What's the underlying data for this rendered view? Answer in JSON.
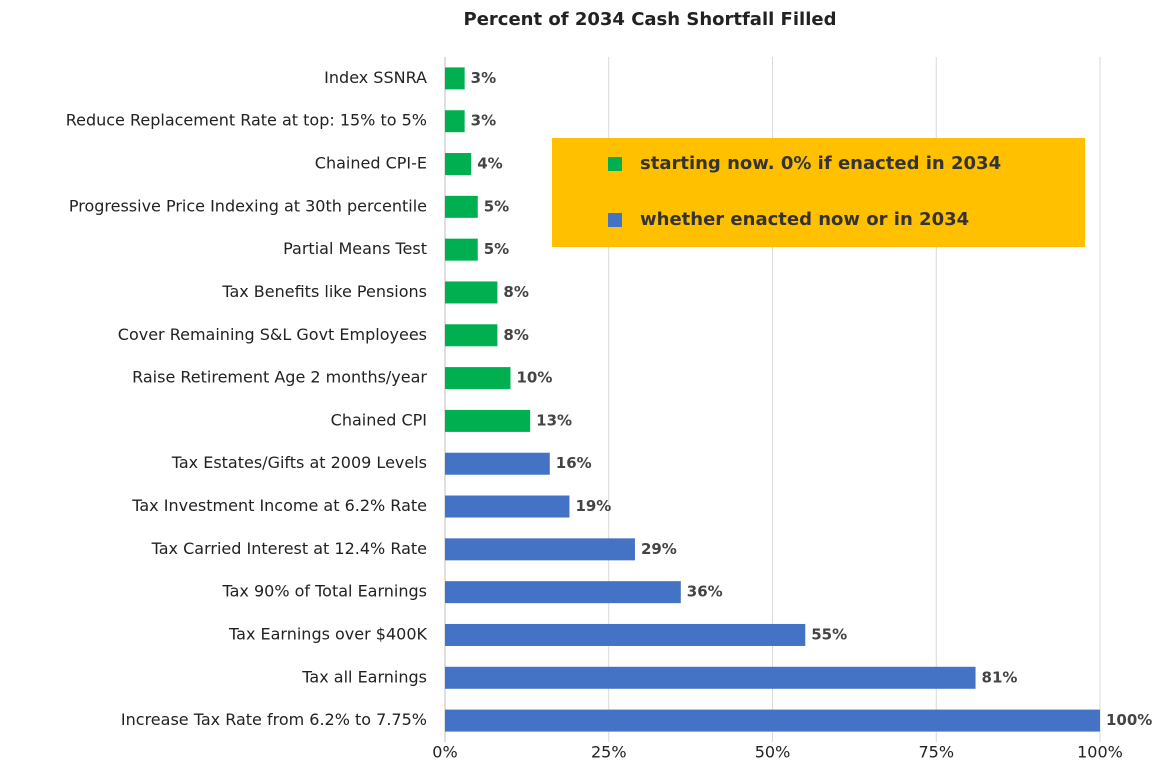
{
  "chart_data": {
    "type": "bar",
    "orientation": "horizontal",
    "title": "Percent of 2034 Cash Shortfall Filled",
    "categories": [
      "Index SSNRA",
      "Reduce Replacement Rate at top: 15% to 5%",
      "Chained CPI-E",
      "Progressive Price Indexing at 30th percentile",
      "Partial Means Test",
      "Tax Benefits like Pensions",
      "Cover Remaining S&L Govt Employees",
      "Raise Retirement Age 2 months/year",
      "Chained CPI",
      "Tax Estates/Gifts at 2009 Levels",
      "Tax Investment Income at 6.2% Rate",
      "Tax Carried Interest at 12.4% Rate",
      "Tax 90% of Total Earnings",
      "Tax Earnings over $400K",
      "Tax all Earnings",
      "Increase Tax Rate from 6.2% to 7.75%"
    ],
    "series": [
      {
        "name": "starting now. 0% if enacted in 2034",
        "color": "#00b050",
        "values": [
          3,
          3,
          4,
          5,
          5,
          8,
          8,
          10,
          13,
          null,
          null,
          null,
          null,
          null,
          null,
          null
        ],
        "value_labels": [
          "3%",
          "3%",
          "4%",
          "5%",
          "5%",
          "8%",
          "8%",
          "10%",
          "13%",
          null,
          null,
          null,
          null,
          null,
          null,
          null
        ]
      },
      {
        "name": "whether enacted now or in 2034",
        "color": "#4472c4",
        "values": [
          null,
          null,
          null,
          null,
          null,
          null,
          null,
          null,
          null,
          16,
          19,
          29,
          36,
          55,
          81,
          100
        ],
        "value_labels": [
          null,
          null,
          null,
          null,
          null,
          null,
          null,
          null,
          null,
          "16%",
          "19%",
          "29%",
          "36%",
          "55%",
          "81%",
          "100%"
        ]
      }
    ],
    "xlim": [
      0,
      100
    ],
    "xticks": [
      {
        "value": 0,
        "label": "0%"
      },
      {
        "value": 25,
        "label": "25%"
      },
      {
        "value": 50,
        "label": "50%"
      },
      {
        "value": 75,
        "label": "75%"
      },
      {
        "value": 100,
        "label": "100%"
      }
    ],
    "grid": true,
    "legend_fill": "#ffc000"
  }
}
